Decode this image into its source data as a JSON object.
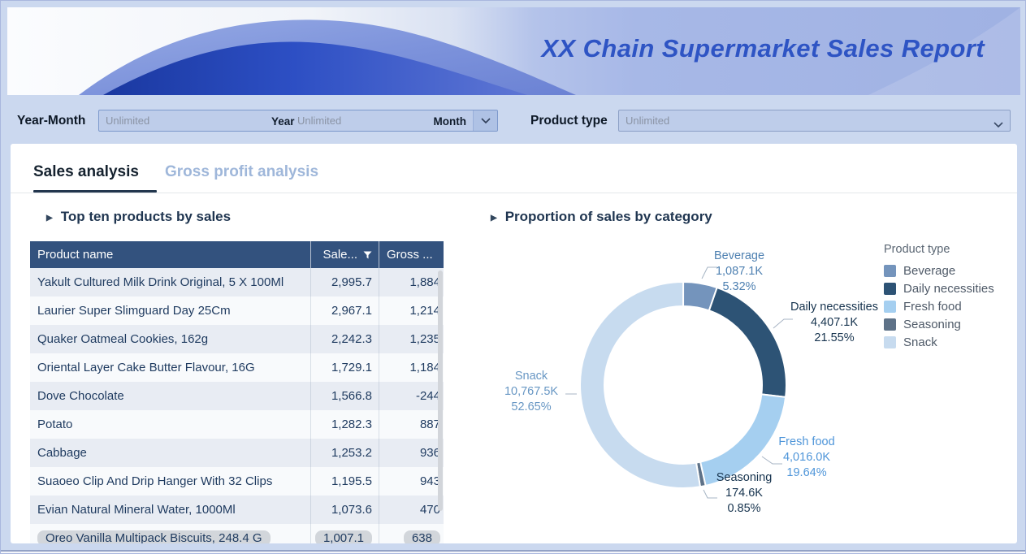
{
  "banner": {
    "title": "XX Chain Supermarket Sales Report"
  },
  "filters": {
    "year_month_label": "Year-Month",
    "year_placeholder": "Unlimited",
    "year_suffix": "Year",
    "month_placeholder": "Unlimited",
    "month_suffix": "Month",
    "product_type_label": "Product type",
    "product_type_placeholder": "Unlimited"
  },
  "tabs": [
    {
      "label": "Sales analysis",
      "active": true
    },
    {
      "label": "Gross profit analysis",
      "active": false
    }
  ],
  "sections": {
    "left_title": "Top ten products by sales",
    "right_title": "Proportion of sales by category"
  },
  "table": {
    "columns": [
      "Product name",
      "Sale...",
      "Gross ..."
    ],
    "rows": [
      {
        "name": "Yakult Cultured Milk Drink Original, 5 X 100Ml",
        "sales": "2,995.7",
        "gross": "1,884"
      },
      {
        "name": "Laurier Super Slimguard Day 25Cm",
        "sales": "2,967.1",
        "gross": "1,214"
      },
      {
        "name": "Quaker Oatmeal Cookies, 162g",
        "sales": "2,242.3",
        "gross": "1,235"
      },
      {
        "name": "Oriental Layer Cake Butter Flavour, 16G",
        "sales": "1,729.1",
        "gross": "1,184"
      },
      {
        "name": "Dove Chocolate",
        "sales": "1,566.8",
        "gross": "-244"
      },
      {
        "name": "Potato",
        "sales": "1,282.3",
        "gross": "887"
      },
      {
        "name": "Cabbage",
        "sales": "1,253.2",
        "gross": "936"
      },
      {
        "name": "Suaoeo Clip And Drip Hanger With 32 Clips",
        "sales": "1,195.5",
        "gross": "943"
      },
      {
        "name": "Evian Natural Mineral Water, 1000Ml",
        "sales": "1,073.6",
        "gross": "470"
      },
      {
        "name": "Oreo Vanilla Multipack Biscuits, 248.4 G",
        "sales": "1,007.1",
        "gross": "638",
        "highlighted": true
      }
    ]
  },
  "chart_data": {
    "type": "pie",
    "title": "Proportion of sales by category",
    "legend_title": "Product type",
    "legend_position": "right",
    "donut": true,
    "slices": [
      {
        "label": "Beverage",
        "value": 1087.1,
        "value_display": "1,087.1K",
        "pct": 5.32,
        "pct_display": "5.32%",
        "color": "#7494BC",
        "label_color": "#4E80B1"
      },
      {
        "label": "Daily necessities",
        "value": 4407.1,
        "value_display": "4,407.1K",
        "pct": 21.55,
        "pct_display": "21.55%",
        "color": "#2D5375",
        "label_color": "#16334E"
      },
      {
        "label": "Fresh food",
        "value": 4016.0,
        "value_display": "4,016.0K",
        "pct": 19.64,
        "pct_display": "19.64%",
        "color": "#A5CFF0",
        "label_color": "#4E95D9"
      },
      {
        "label": "Seasoning",
        "value": 174.6,
        "value_display": "174.6K",
        "pct": 0.85,
        "pct_display": "0.85%",
        "color": "#5E7288",
        "label_color": "#16334E"
      },
      {
        "label": "Snack",
        "value": 10767.5,
        "value_display": "10,767.5K",
        "pct": 52.65,
        "pct_display": "52.65%",
        "color": "#C7DBEF",
        "label_color": "#6897C4"
      }
    ]
  },
  "colors": {
    "page_background": "#CBD8EF",
    "banner_right": "#A2B4E4",
    "title_blue": "#2E54C4",
    "table_header": "#33527E",
    "row_odd": "#E8ECF3",
    "row_even": "#F8FAFC",
    "table_text": "#1E3A5F",
    "active_tab": "#15222F",
    "inactive_tab": "#9FB7DA"
  }
}
